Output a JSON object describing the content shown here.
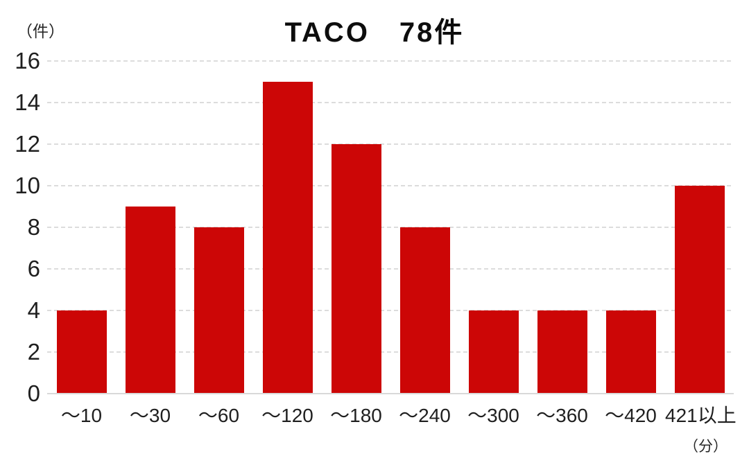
{
  "title": "TACO　78件",
  "y_axis_unit": "（件）",
  "x_axis_unit": "（分）",
  "colors": {
    "bar": "#cc0606",
    "gridline": "#dcdcdc",
    "baseline": "#d9d9d9",
    "text": "#1f1f1f",
    "background": "#ffffff"
  },
  "chart_data": {
    "type": "bar",
    "title": "TACO　78件",
    "categories": [
      "～10",
      "～30",
      "～60",
      "～120",
      "～180",
      "～240",
      "～300",
      "～360",
      "～420",
      "421以上"
    ],
    "values": [
      4,
      9,
      8,
      15,
      12,
      8,
      4,
      4,
      4,
      10
    ],
    "total_count": 78,
    "xlabel": "（分）",
    "ylabel": "（件）",
    "ylim": [
      0,
      16
    ],
    "ytick_step": 2,
    "yticks": [
      0,
      2,
      4,
      6,
      8,
      10,
      12,
      14,
      16
    ],
    "grid": "horizontal-dashed",
    "legend_position": "none",
    "series_name": "TACO"
  }
}
